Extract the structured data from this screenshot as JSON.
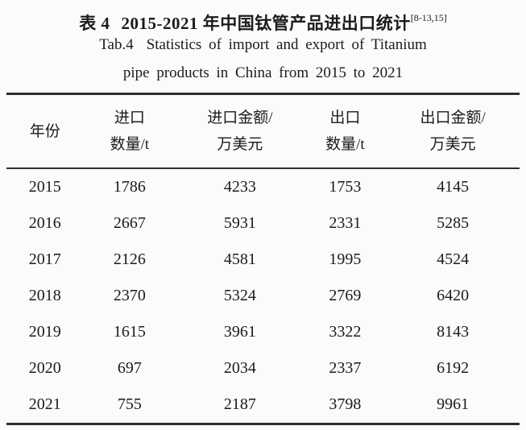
{
  "title": {
    "zh_label": "表 4",
    "zh_text": "2015-2021 年中国钛管产品进出口统计",
    "citation": "[8-13,15]",
    "en_label": "Tab.4",
    "en_text": "Statistics of import and export of Titanium",
    "en_line2": "pipe products in China from 2015 to 2021"
  },
  "table": {
    "columns": [
      {
        "line1": "年份",
        "line2": ""
      },
      {
        "line1": "进口",
        "line2": "数量/t"
      },
      {
        "line1": "进口金额/",
        "line2": "万美元"
      },
      {
        "line1": "出口",
        "line2": "数量/t"
      },
      {
        "line1": "出口金额/",
        "line2": "万美元"
      }
    ],
    "rows": [
      [
        "2015",
        "1786",
        "4233",
        "1753",
        "4145"
      ],
      [
        "2016",
        "2667",
        "5931",
        "2331",
        "5285"
      ],
      [
        "2017",
        "2126",
        "4581",
        "1995",
        "4524"
      ],
      [
        "2018",
        "2370",
        "5324",
        "2769",
        "6420"
      ],
      [
        "2019",
        "1615",
        "3961",
        "3322",
        "8143"
      ],
      [
        "2020",
        "697",
        "2034",
        "2337",
        "6192"
      ],
      [
        "2021",
        "755",
        "2187",
        "3798",
        "9961"
      ]
    ]
  },
  "colors": {
    "background": "#fbfbfb",
    "text": "#1b1b1b",
    "rule": "#2e2e2e"
  }
}
